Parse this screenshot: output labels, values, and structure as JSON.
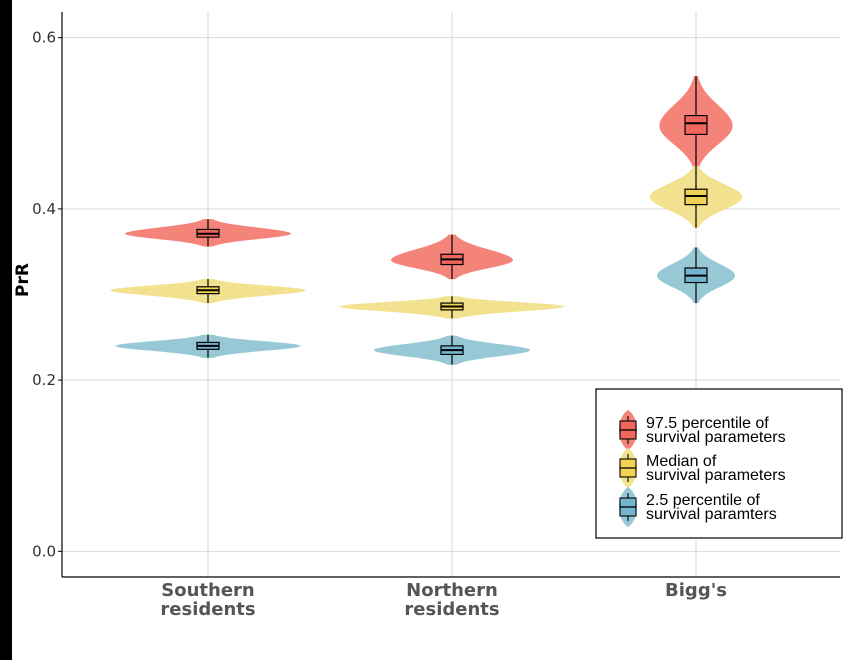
{
  "chart_data": {
    "type": "violin",
    "ylabel": "PrR",
    "xlabel": "",
    "ylim": [
      -0.03,
      0.63
    ],
    "yticks": [
      "0.0",
      "0.2",
      "0.4",
      "0.6"
    ],
    "ytick_values": [
      0.0,
      0.2,
      0.4,
      0.6
    ],
    "grid": true,
    "legend_position": "bottom-right",
    "categories": [
      {
        "line1": "Southern",
        "line2": "residents"
      },
      {
        "line1": "Northern",
        "line2": "residents"
      },
      {
        "line1": "Bigg's",
        "line2": ""
      }
    ],
    "series": [
      {
        "legend_line1": "97.5 percentile of",
        "legend_line2": "survival parameters",
        "fill": "#f4837a",
        "box_fill": "#f0665c",
        "points": [
          {
            "median": 0.371,
            "q1": 0.367,
            "q3": 0.376,
            "min": 0.356,
            "max": 0.388,
            "peak": 0.371,
            "halfwidth": 0.34
          },
          {
            "median": 0.341,
            "q1": 0.335,
            "q3": 0.347,
            "min": 0.318,
            "max": 0.37,
            "peak": 0.34,
            "halfwidth": 0.25
          },
          {
            "median": 0.5,
            "q1": 0.487,
            "q3": 0.509,
            "min": 0.445,
            "max": 0.555,
            "peak": 0.497,
            "halfwidth": 0.15
          }
        ]
      },
      {
        "legend_line1": "Median of",
        "legend_line2": "survival parameters",
        "fill": "#f2e28f",
        "box_fill": "#f2d255",
        "points": [
          {
            "median": 0.305,
            "q1": 0.301,
            "q3": 0.309,
            "min": 0.29,
            "max": 0.318,
            "peak": 0.305,
            "halfwidth": 0.4
          },
          {
            "median": 0.286,
            "q1": 0.282,
            "q3": 0.29,
            "min": 0.272,
            "max": 0.298,
            "peak": 0.286,
            "halfwidth": 0.46
          },
          {
            "median": 0.415,
            "q1": 0.405,
            "q3": 0.423,
            "min": 0.378,
            "max": 0.45,
            "peak": 0.414,
            "halfwidth": 0.19
          }
        ]
      },
      {
        "legend_line1": "2.5 percentile of",
        "legend_line2": "survival paramters",
        "fill": "#96c8d6",
        "box_fill": "#75b5cf",
        "points": [
          {
            "median": 0.24,
            "q1": 0.236,
            "q3": 0.244,
            "min": 0.226,
            "max": 0.253,
            "peak": 0.24,
            "halfwidth": 0.38
          },
          {
            "median": 0.235,
            "q1": 0.23,
            "q3": 0.24,
            "min": 0.218,
            "max": 0.252,
            "peak": 0.235,
            "halfwidth": 0.32
          },
          {
            "median": 0.322,
            "q1": 0.314,
            "q3": 0.331,
            "min": 0.29,
            "max": 0.355,
            "peak": 0.322,
            "halfwidth": 0.16
          }
        ]
      }
    ]
  }
}
